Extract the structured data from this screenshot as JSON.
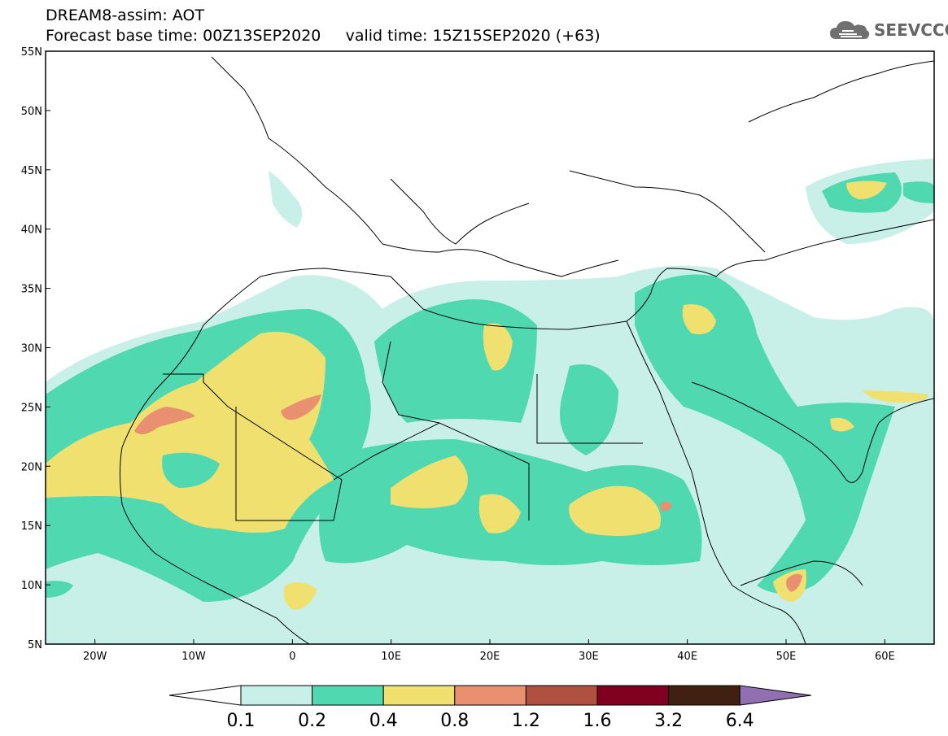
{
  "title": {
    "line1": "DREAM8-assim: AOT",
    "line2": "Forecast base time: 00Z13SEP2020     valid time: 15Z15SEP2020 (+63)"
  },
  "logo": {
    "text": "SEEVCCC",
    "icon": "cloud-icon"
  },
  "map": {
    "lat_labels": [
      "55N",
      "50N",
      "45N",
      "40N",
      "35N",
      "30N",
      "25N",
      "20N",
      "15N",
      "10N",
      "5N"
    ],
    "lon_labels": [
      "20W",
      "10W",
      "0",
      "10E",
      "20E",
      "30E",
      "40E",
      "50E",
      "60E"
    ],
    "lat_range": [
      5,
      55
    ],
    "lon_range": [
      -25,
      65
    ]
  },
  "colorbar": {
    "ticks": [
      "0.1",
      "0.2",
      "0.4",
      "0.8",
      "1.2",
      "1.6",
      "3.2",
      "6.4"
    ],
    "colors": [
      "#c8f0e8",
      "#50d8b0",
      "#f0e070",
      "#e89070",
      "#b05040",
      "#800020",
      "#402010",
      "#9070b0"
    ]
  }
}
